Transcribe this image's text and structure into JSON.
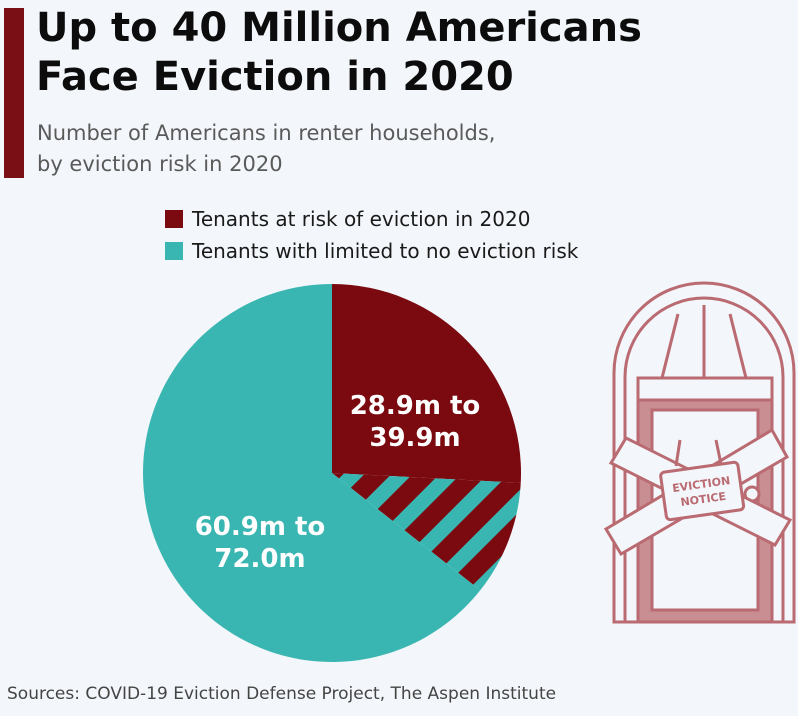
{
  "header": {
    "title_line1": "Up to 40 Million Americans",
    "title_line2": "Face Eviction in 2020",
    "subtitle_line1": "Number of Americans in renter households,",
    "subtitle_line2": "by eviction risk in 2020"
  },
  "colors": {
    "accent": "#7a0f16",
    "at_risk": "#7a0a10",
    "limited_risk": "#3ab6b2",
    "illustration_line": "#b96b71",
    "illustration_fill": "#c88e92"
  },
  "chart_data": {
    "type": "pie",
    "title": "Up to 40 Million Americans Face Eviction in 2020",
    "subtitle": "Number of Americans in renter households, by eviction risk in 2020",
    "unit": "million people",
    "series": [
      {
        "name": "Tenants at risk of eviction in 2020",
        "label": "28.9m to 39.9m",
        "label_lines": [
          "28.9m to",
          "39.9m"
        ],
        "value_min": 28.9,
        "value_max": 39.9
      },
      {
        "name": "Tenants with limited to no eviction risk",
        "label": "60.9m to 72.0m",
        "label_lines": [
          "60.9m to",
          "72.0m"
        ],
        "value_min": 60.9,
        "value_max": 72.0
      }
    ],
    "legend_position": "top",
    "uncertain_band_style": "hatched"
  },
  "illustration": {
    "icon": "eviction-door-icon",
    "sign_line1": "EVICTION",
    "sign_line2": "NOTICE"
  },
  "footer": {
    "source": "Sources: COVID-19 Eviction Defense Project, The Aspen Institute"
  }
}
